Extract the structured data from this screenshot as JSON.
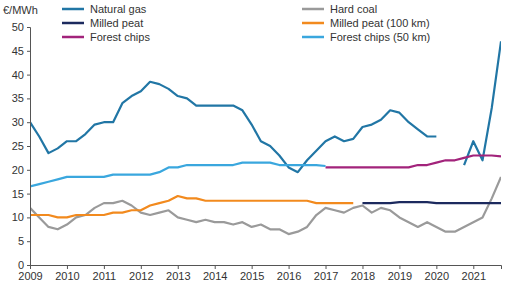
{
  "chart_data": {
    "type": "line",
    "y_label": "€/MWh",
    "x": [
      2009,
      2009.25,
      2009.5,
      2009.75,
      2010,
      2010.25,
      2010.5,
      2010.75,
      2011,
      2011.25,
      2011.5,
      2011.75,
      2012,
      2012.25,
      2012.5,
      2012.75,
      2013,
      2013.25,
      2013.5,
      2013.75,
      2014,
      2014.25,
      2014.5,
      2014.75,
      2015,
      2015.25,
      2015.5,
      2015.75,
      2016,
      2016.25,
      2016.5,
      2016.75,
      2017,
      2017.25,
      2017.5,
      2017.75,
      2018,
      2018.25,
      2018.5,
      2018.75,
      2019,
      2019.25,
      2019.5,
      2019.75,
      2020,
      2020.25,
      2020.5,
      2020.75,
      2021,
      2021.25,
      2021.5,
      2021.75
    ],
    "xlim": [
      2009,
      2021.75
    ],
    "xticks": [
      2009,
      2010,
      2011,
      2012,
      2013,
      2014,
      2015,
      2016,
      2017,
      2018,
      2019,
      2020,
      2021
    ],
    "ylim": [
      0,
      50
    ],
    "yticks": [
      0,
      5,
      10,
      15,
      20,
      25,
      30,
      35,
      40,
      45,
      50
    ],
    "grid": false,
    "legend": "top",
    "series": [
      {
        "name": "Natural gas",
        "color": "#2176a5",
        "values": [
          30,
          27,
          23.5,
          24.5,
          26,
          26,
          27.5,
          29.5,
          30,
          30,
          34,
          35.5,
          36.5,
          38.5,
          38,
          37,
          35.5,
          35,
          33.5,
          33.5,
          33.5,
          33.5,
          33.5,
          32.5,
          29.5,
          26,
          25,
          23,
          20.5,
          19.5,
          22,
          24,
          26,
          27,
          26,
          26.5,
          29,
          29.5,
          30.5,
          32.5,
          32,
          30,
          28.5,
          27,
          27,
          null,
          null,
          21,
          26,
          22,
          33,
          47
        ]
      },
      {
        "name": "Hard coal",
        "color": "#9a9a9a",
        "values": [
          12,
          10,
          8,
          7.5,
          8.5,
          10,
          10.5,
          12,
          13,
          13,
          13.5,
          12.5,
          11,
          10.5,
          11,
          11.5,
          10,
          9.5,
          9,
          9.5,
          9,
          9,
          8.5,
          9,
          8,
          8.5,
          7.5,
          7.5,
          6.5,
          7,
          8,
          10.5,
          12,
          11.5,
          11,
          12,
          12.5,
          11,
          12,
          11.5,
          10,
          9,
          8,
          9,
          8,
          7,
          7,
          8,
          9,
          10,
          14,
          18.5
        ]
      },
      {
        "name": "Milled peat",
        "color": "#1c2a5e",
        "values": [
          null,
          null,
          null,
          null,
          null,
          null,
          null,
          null,
          null,
          null,
          null,
          null,
          null,
          null,
          null,
          null,
          null,
          null,
          null,
          null,
          null,
          null,
          null,
          null,
          null,
          null,
          null,
          null,
          null,
          null,
          null,
          null,
          null,
          null,
          null,
          null,
          13,
          13,
          13,
          13,
          13.2,
          13.2,
          13.2,
          13.2,
          13,
          13,
          13,
          13,
          13,
          13,
          13,
          13
        ]
      },
      {
        "name": "Milled peat (100 km)",
        "color": "#f28a1e",
        "values": [
          10.5,
          10.5,
          10.5,
          10,
          10,
          10.5,
          10.5,
          10.5,
          10.5,
          11,
          11,
          11.5,
          11.5,
          12.5,
          13,
          13.5,
          14.5,
          14,
          14,
          13.5,
          13.5,
          13.5,
          13.5,
          13.5,
          13.5,
          13.5,
          13.5,
          13.5,
          13.5,
          13.5,
          13.5,
          13,
          13,
          13,
          13,
          13,
          null,
          null,
          null,
          null,
          null,
          null,
          null,
          null,
          null,
          null,
          null,
          null,
          null,
          null,
          null,
          null
        ]
      },
      {
        "name": "Forest chips",
        "color": "#a2237b",
        "values": [
          null,
          null,
          null,
          null,
          null,
          null,
          null,
          null,
          null,
          null,
          null,
          null,
          null,
          null,
          null,
          null,
          null,
          null,
          null,
          null,
          null,
          null,
          null,
          null,
          null,
          null,
          null,
          null,
          null,
          null,
          null,
          null,
          20.5,
          20.5,
          20.5,
          20.5,
          20.5,
          20.5,
          20.5,
          20.5,
          20.5,
          20.5,
          21,
          21,
          21.5,
          22,
          22,
          22.5,
          23,
          23,
          23,
          22.8
        ]
      },
      {
        "name": "Forest chips (50 km)",
        "color": "#3aa7de",
        "values": [
          16.5,
          17,
          17.5,
          18,
          18.5,
          18.5,
          18.5,
          18.5,
          18.5,
          19,
          19,
          19,
          19,
          19,
          19.5,
          20.5,
          20.5,
          21,
          21,
          21,
          21,
          21,
          21,
          21.5,
          21.5,
          21.5,
          21.5,
          21,
          21,
          21,
          21,
          21,
          20.8,
          null,
          null,
          null,
          null,
          null,
          null,
          null,
          null,
          null,
          null,
          null,
          null,
          null,
          null,
          null,
          null,
          null,
          null,
          null
        ]
      }
    ]
  }
}
